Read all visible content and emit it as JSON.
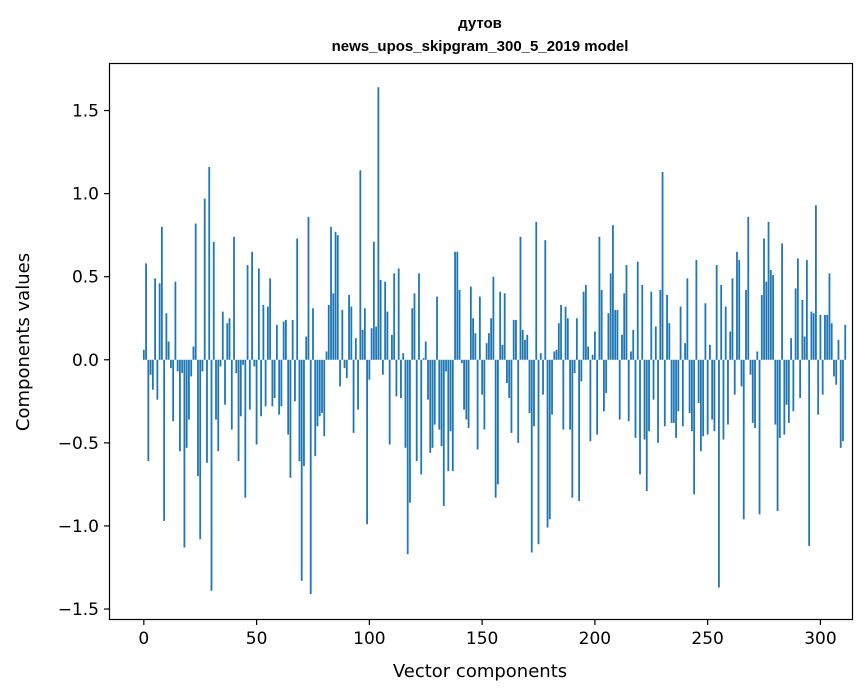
{
  "chart_data": {
    "type": "bar",
    "title": "дутов",
    "subtitle": "news_upos_skipgram_300_5_2019 model",
    "xlabel": "Vector components",
    "ylabel": "Components values",
    "xlim": [
      -15,
      314
    ],
    "ylim": [
      -1.56,
      1.78
    ],
    "x_ticks": [
      0,
      50,
      100,
      150,
      200,
      250,
      300
    ],
    "y_ticks": [
      -1.5,
      -1.0,
      -0.5,
      0.0,
      0.5,
      1.0,
      1.5
    ],
    "x_tick_labels": [
      "0",
      "50",
      "100",
      "150",
      "200",
      "250",
      "300"
    ],
    "y_tick_labels": [
      "−1.5",
      "−1.0",
      "−0.5",
      "0.0",
      "0.5",
      "1.0",
      "1.5"
    ],
    "bar_color": "#1f77b4",
    "values": [
      0.06,
      0.58,
      -0.61,
      -0.09,
      -0.18,
      0.49,
      -0.24,
      0.46,
      0.8,
      -0.97,
      0.28,
      0.11,
      -0.05,
      -0.37,
      0.47,
      -0.07,
      -0.55,
      -0.08,
      -1.13,
      -0.53,
      -0.36,
      -0.1,
      0.08,
      0.82,
      -0.7,
      -1.08,
      -0.07,
      0.97,
      -0.62,
      1.16,
      -1.39,
      0.71,
      -0.36,
      -0.55,
      -0.04,
      0.29,
      -0.27,
      0.22,
      0.25,
      -0.42,
      0.74,
      -0.08,
      -0.61,
      -0.34,
      -0.03,
      -0.83,
      0.57,
      -0.3,
      0.65,
      -0.04,
      -0.51,
      0.55,
      -0.34,
      0.33,
      -0.28,
      0.32,
      0.49,
      -0.28,
      -0.23,
      0.21,
      -0.33,
      -0.28,
      0.23,
      0.24,
      -0.45,
      -0.71,
      0.24,
      -0.25,
      0.73,
      -0.61,
      -1.33,
      -0.64,
      0.14,
      0.86,
      -1.41,
      0.31,
      -0.58,
      -0.4,
      -0.34,
      -0.32,
      -0.46,
      0.05,
      0.33,
      0.8,
      0.4,
      0.77,
      0.75,
      -0.16,
      0.3,
      -0.05,
      -0.11,
      0.39,
      0.32,
      -0.44,
      0.13,
      -0.3,
      1.14,
      0.18,
      0.31,
      -0.99,
      -0.12,
      0.19,
      0.71,
      0.2,
      1.64,
      0.48,
      -0.09,
      0.47,
      0.29,
      -0.51,
      0.15,
      0.52,
      -0.22,
      0.55,
      -0.23,
      0.04,
      -0.53,
      -1.17,
      -0.86,
      0.31,
      0.4,
      -0.61,
      0.52,
      -0.69,
      0.01,
      0.11,
      -0.24,
      -0.56,
      -0.53,
      -0.39,
      0.38,
      -0.42,
      -0.52,
      -0.88,
      -0.07,
      -0.67,
      -0.43,
      -0.67,
      0.65,
      0.65,
      0.42,
      -0.02,
      -0.3,
      -0.36,
      -0.41,
      0.44,
      0.25,
      0.16,
      -0.54,
      0.38,
      -0.21,
      -0.42,
      0.1,
      0.16,
      0.25,
      0.5,
      -0.83,
      -0.75,
      0.41,
      0.09,
      0.4,
      -0.14,
      -0.23,
      -0.44,
      0.24,
      0.24,
      -0.5,
      0.74,
      0.18,
      0.12,
      0.15,
      -0.32,
      -1.16,
      -0.4,
      0.83,
      -1.11,
      0.04,
      -0.21,
      0.72,
      -1.01,
      -0.96,
      -0.33,
      0.05,
      0.06,
      0.22,
      0.33,
      -0.42,
      0.32,
      0.25,
      -0.42,
      -0.83,
      -0.08,
      0.25,
      -0.85,
      -0.13,
      0.41,
      0.45,
      0.08,
      -0.49,
      0.03,
      0.17,
      -0.45,
      0.74,
      0.42,
      -0.31,
      -0.2,
      0.28,
      0.52,
      0.81,
      0.3,
      0.3,
      -0.36,
      0.15,
      0.4,
      0.57,
      -0.37,
      0.05,
      0.18,
      -0.47,
      0.59,
      -0.69,
      0.45,
      -0.48,
      -0.79,
      -0.43,
      0.41,
      -0.24,
      0.2,
      -0.5,
      0.42,
      1.13,
      -0.4,
      0.39,
      0.22,
      -0.38,
      -0.38,
      -0.47,
      -0.31,
      0.32,
      -0.4,
      0.1,
      0.49,
      -0.32,
      -0.43,
      -0.81,
      0.6,
      -0.26,
      -0.55,
      -0.46,
      0.34,
      -0.45,
      0.09,
      -0.36,
      -0.43,
      0.57,
      -1.37,
      0.45,
      -0.48,
      0.32,
      -0.39,
      0.17,
      0.49,
      -0.21,
      0.65,
      0.6,
      -0.16,
      -0.96,
      0.42,
      0.86,
      -0.09,
      -0.38,
      -0.41,
      0.05,
      -0.93,
      0.39,
      0.73,
      0.47,
      0.83,
      0.54,
      0.51,
      -0.39,
      -0.91,
      -0.47,
      0.7,
      -0.45,
      -0.27,
      -0.38,
      0.13,
      -0.31,
      0.43,
      0.61,
      -0.23,
      0.36,
      0.14,
      0.6,
      -1.12,
      0.29,
      0.28,
      0.93,
      -0.33,
      0.27,
      -0.21,
      0.27,
      0.27,
      0.52,
      0.22,
      -0.1,
      -0.15,
      0.12,
      -0.53,
      -0.49,
      0.21
    ]
  }
}
